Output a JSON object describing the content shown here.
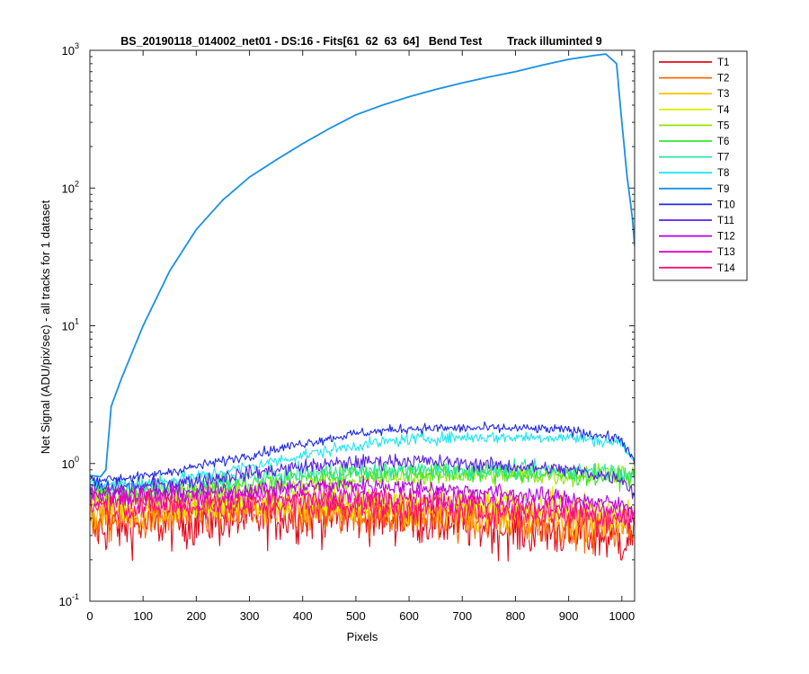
{
  "title": "BS_20190118_014002_net01 - DS:16 - Fits[61  62  63  64]   Bend Test        Track illuminted 9",
  "xlabel": "Pixels",
  "ylabel": "Net Signal (ADU/pix/sec) - all tracks for 1 dataset",
  "chart_data": {
    "type": "line",
    "title": "BS_20190118_014002_net01 - DS:16 - Fits[61  62  63  64]   Bend Test        Track illuminted 9",
    "xlabel": "Pixels",
    "ylabel": "Net Signal (ADU/pix/sec) - all tracks for 1 dataset",
    "xlim": [
      0,
      1024
    ],
    "ylim": [
      0.1,
      1000
    ],
    "yscale": "log",
    "grid": false,
    "legend_position": "outside-right",
    "x_ticks": [
      "0",
      "100",
      "200",
      "300",
      "400",
      "500",
      "600",
      "700",
      "800",
      "900",
      "1000"
    ],
    "y_ticks": [
      {
        "base": "10",
        "exp": "-1",
        "value": 0.1
      },
      {
        "base": "10",
        "exp": "0",
        "value": 1
      },
      {
        "base": "10",
        "exp": "1",
        "value": 10
      },
      {
        "base": "10",
        "exp": "2",
        "value": 100
      },
      {
        "base": "10",
        "exp": "3",
        "value": 1000
      }
    ],
    "series": [
      {
        "name": "T1",
        "color": "#e6091a",
        "x": [
          0,
          100,
          200,
          300,
          400,
          500,
          600,
          700,
          800,
          900,
          1000,
          1024
        ],
        "y": [
          0.33,
          0.36,
          0.38,
          0.4,
          0.42,
          0.42,
          0.4,
          0.37,
          0.33,
          0.32,
          0.28,
          0.3
        ],
        "noise": 0.22
      },
      {
        "name": "T2",
        "color": "#ff6a00",
        "x": [
          0,
          100,
          200,
          300,
          400,
          500,
          600,
          700,
          800,
          900,
          1000,
          1024
        ],
        "y": [
          0.38,
          0.4,
          0.42,
          0.44,
          0.44,
          0.44,
          0.42,
          0.4,
          0.38,
          0.36,
          0.33,
          0.34
        ],
        "noise": 0.18
      },
      {
        "name": "T3",
        "color": "#ffc400",
        "x": [
          0,
          100,
          200,
          300,
          400,
          500,
          600,
          700,
          800,
          900,
          1000,
          1024
        ],
        "y": [
          0.44,
          0.45,
          0.47,
          0.48,
          0.48,
          0.47,
          0.45,
          0.43,
          0.42,
          0.4,
          0.38,
          0.4
        ],
        "noise": 0.15
      },
      {
        "name": "T4",
        "color": "#d9f200",
        "x": [
          0,
          100,
          200,
          300,
          400,
          500,
          600,
          700,
          800,
          900,
          1000,
          1024
        ],
        "y": [
          0.52,
          0.52,
          0.52,
          0.52,
          0.53,
          0.53,
          0.53,
          0.52,
          0.5,
          0.48,
          0.45,
          0.46
        ],
        "noise": 0.12
      },
      {
        "name": "T5",
        "color": "#90e600",
        "x": [
          0,
          100,
          200,
          300,
          400,
          500,
          600,
          700,
          800,
          900,
          1000,
          1024
        ],
        "y": [
          0.58,
          0.58,
          0.6,
          0.64,
          0.7,
          0.75,
          0.8,
          0.82,
          0.82,
          0.82,
          0.85,
          0.78
        ],
        "noise": 0.09
      },
      {
        "name": "T6",
        "color": "#33e633",
        "x": [
          0,
          100,
          200,
          300,
          400,
          500,
          600,
          700,
          800,
          900,
          1000,
          1024
        ],
        "y": [
          0.62,
          0.62,
          0.66,
          0.72,
          0.8,
          0.85,
          0.86,
          0.86,
          0.84,
          0.82,
          0.8,
          0.78
        ],
        "noise": 0.08
      },
      {
        "name": "T7",
        "color": "#2ee6a0",
        "x": [
          0,
          100,
          200,
          300,
          400,
          500,
          600,
          700,
          800,
          900,
          1000,
          1024
        ],
        "y": [
          0.66,
          0.68,
          0.72,
          0.8,
          0.85,
          0.88,
          0.9,
          0.9,
          0.9,
          0.9,
          0.88,
          0.82
        ],
        "noise": 0.07
      },
      {
        "name": "T8",
        "color": "#1ee6f0",
        "x": [
          0,
          100,
          200,
          300,
          400,
          500,
          600,
          700,
          800,
          900,
          1000,
          1024
        ],
        "y": [
          0.7,
          0.72,
          0.8,
          0.95,
          1.15,
          1.35,
          1.5,
          1.55,
          1.55,
          1.55,
          1.4,
          1.0
        ],
        "noise": 0.05
      },
      {
        "name": "T9",
        "color": "#1a90e6",
        "x": [
          0,
          20,
          30,
          40,
          60,
          100,
          150,
          200,
          250,
          300,
          350,
          400,
          450,
          500,
          550,
          600,
          650,
          700,
          750,
          800,
          850,
          900,
          950,
          970,
          990,
          1000,
          1010,
          1020,
          1024
        ],
        "y": [
          0.82,
          0.8,
          0.9,
          2.6,
          4.2,
          10,
          25,
          50,
          82,
          120,
          160,
          210,
          270,
          340,
          400,
          460,
          520,
          580,
          640,
          700,
          780,
          860,
          920,
          940,
          800,
          300,
          120,
          60,
          38
        ],
        "noise": 0.0
      },
      {
        "name": "T10",
        "color": "#1f2ae6",
        "x": [
          0,
          100,
          200,
          300,
          400,
          500,
          600,
          700,
          800,
          900,
          1000,
          1024
        ],
        "y": [
          0.76,
          0.8,
          0.95,
          1.15,
          1.4,
          1.65,
          1.8,
          1.8,
          1.8,
          1.75,
          1.5,
          1.0
        ],
        "noise": 0.04
      },
      {
        "name": "T11",
        "color": "#5a20e6",
        "x": [
          0,
          100,
          200,
          300,
          400,
          500,
          600,
          700,
          800,
          900,
          1000,
          1024
        ],
        "y": [
          0.66,
          0.68,
          0.75,
          0.85,
          0.95,
          1.02,
          1.05,
          1.0,
          0.95,
          0.9,
          0.78,
          0.6
        ],
        "noise": 0.06
      },
      {
        "name": "T12",
        "color": "#b300e6",
        "x": [
          0,
          100,
          200,
          300,
          400,
          500,
          600,
          700,
          800,
          900,
          1000,
          1024
        ],
        "y": [
          0.6,
          0.6,
          0.62,
          0.64,
          0.68,
          0.7,
          0.68,
          0.64,
          0.6,
          0.56,
          0.5,
          0.48
        ],
        "noise": 0.07
      },
      {
        "name": "T13",
        "color": "#e600c8",
        "x": [
          0,
          100,
          200,
          300,
          400,
          500,
          600,
          700,
          800,
          900,
          1000,
          1024
        ],
        "y": [
          0.56,
          0.55,
          0.55,
          0.57,
          0.58,
          0.58,
          0.56,
          0.54,
          0.52,
          0.48,
          0.44,
          0.42
        ],
        "noise": 0.09
      },
      {
        "name": "T14",
        "color": "#ff0f7a",
        "x": [
          0,
          100,
          200,
          300,
          400,
          500,
          600,
          700,
          800,
          900,
          1000,
          1024
        ],
        "y": [
          0.5,
          0.48,
          0.48,
          0.48,
          0.5,
          0.5,
          0.48,
          0.46,
          0.44,
          0.42,
          0.4,
          0.4
        ],
        "noise": 0.12
      }
    ]
  }
}
